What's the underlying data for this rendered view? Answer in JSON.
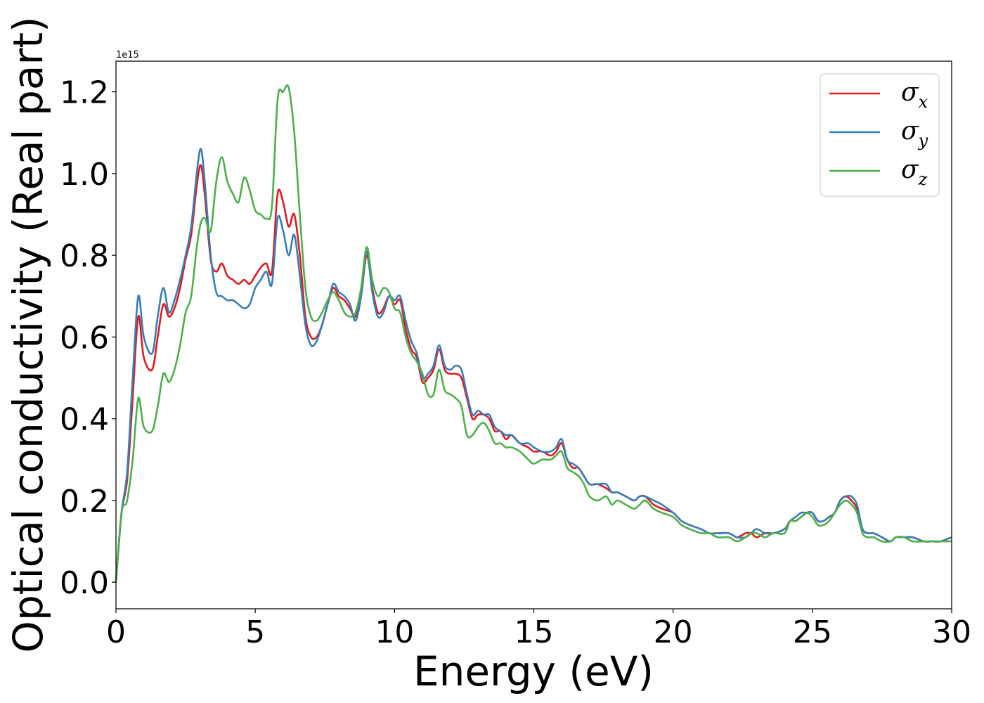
{
  "chart_data": {
    "type": "line",
    "title": "",
    "xlabel": "Energy (eV)",
    "ylabel": "Optical conductivity (Real part)",
    "y_offset_text": "1e15",
    "xlim": [
      0,
      30
    ],
    "ylim": [
      -0.065,
      1.275
    ],
    "xticks": [
      0,
      5,
      10,
      15,
      20,
      25,
      30
    ],
    "xtick_labels": [
      "0",
      "5",
      "10",
      "15",
      "20",
      "25",
      "30"
    ],
    "yticks": [
      0.0,
      0.2,
      0.4,
      0.6,
      0.8,
      1.0,
      1.2
    ],
    "ytick_labels": [
      "0.0",
      "0.2",
      "0.4",
      "0.6",
      "0.8",
      "1.0",
      "1.2"
    ],
    "grid": false,
    "legend_position": "top-right",
    "series": [
      {
        "name": "σx",
        "symbol": "σ",
        "sub": "x",
        "color": "#e41a1c",
        "x": [
          0,
          0.2,
          0.4,
          0.6,
          0.8,
          1.0,
          1.3,
          1.5,
          1.7,
          1.9,
          2.1,
          2.3,
          2.5,
          2.7,
          2.9,
          3.05,
          3.2,
          3.4,
          3.6,
          3.8,
          4.0,
          4.2,
          4.4,
          4.6,
          4.8,
          5.0,
          5.2,
          5.4,
          5.6,
          5.8,
          6.0,
          6.2,
          6.4,
          6.6,
          6.8,
          7.0,
          7.2,
          7.4,
          7.6,
          7.8,
          8.0,
          8.2,
          8.4,
          8.6,
          8.8,
          9.0,
          9.2,
          9.4,
          9.6,
          9.8,
          10.0,
          10.2,
          10.4,
          10.6,
          10.8,
          11.0,
          11.2,
          11.4,
          11.6,
          11.8,
          12.0,
          12.2,
          12.4,
          12.6,
          12.8,
          13.0,
          13.2,
          13.4,
          13.6,
          13.8,
          14.0,
          14.2,
          14.5,
          14.8,
          15.0,
          15.3,
          15.6,
          15.8,
          16.0,
          16.2,
          16.4,
          16.6,
          16.8,
          17.0,
          17.3,
          17.6,
          17.8,
          18.0,
          18.3,
          18.6,
          18.8,
          19.0,
          19.3,
          19.6,
          20.0,
          20.3,
          20.6,
          21.0,
          21.3,
          21.6,
          22.0,
          22.3,
          22.6,
          22.8,
          23.0,
          23.3,
          23.6,
          24.0,
          24.2,
          24.4,
          24.6,
          24.8,
          25.0,
          25.2,
          25.4,
          25.6,
          25.8,
          26.0,
          26.2,
          26.4,
          26.6,
          26.8,
          27.0,
          27.2,
          27.5,
          27.8,
          28.0,
          28.3,
          28.6,
          29.0,
          29.3,
          29.6,
          30.0
        ],
        "y": [
          0.0,
          0.17,
          0.25,
          0.45,
          0.65,
          0.55,
          0.52,
          0.6,
          0.68,
          0.65,
          0.67,
          0.72,
          0.79,
          0.85,
          0.97,
          1.02,
          0.94,
          0.79,
          0.76,
          0.78,
          0.75,
          0.74,
          0.73,
          0.74,
          0.73,
          0.75,
          0.77,
          0.78,
          0.76,
          0.95,
          0.93,
          0.87,
          0.9,
          0.8,
          0.65,
          0.6,
          0.6,
          0.63,
          0.68,
          0.72,
          0.7,
          0.69,
          0.67,
          0.65,
          0.7,
          0.8,
          0.72,
          0.66,
          0.67,
          0.7,
          0.68,
          0.69,
          0.62,
          0.57,
          0.55,
          0.49,
          0.5,
          0.52,
          0.57,
          0.52,
          0.51,
          0.51,
          0.5,
          0.45,
          0.4,
          0.41,
          0.41,
          0.4,
          0.37,
          0.37,
          0.35,
          0.36,
          0.34,
          0.33,
          0.32,
          0.32,
          0.31,
          0.32,
          0.34,
          0.3,
          0.28,
          0.28,
          0.26,
          0.24,
          0.24,
          0.23,
          0.22,
          0.22,
          0.21,
          0.2,
          0.21,
          0.21,
          0.19,
          0.18,
          0.17,
          0.15,
          0.14,
          0.13,
          0.12,
          0.12,
          0.12,
          0.11,
          0.12,
          0.12,
          0.11,
          0.12,
          0.12,
          0.13,
          0.15,
          0.15,
          0.16,
          0.17,
          0.17,
          0.15,
          0.15,
          0.16,
          0.17,
          0.2,
          0.21,
          0.2,
          0.18,
          0.13,
          0.12,
          0.12,
          0.11,
          0.1,
          0.11,
          0.11,
          0.11,
          0.1,
          0.1,
          0.1,
          0.11
        ]
      },
      {
        "name": "σy",
        "symbol": "σ",
        "sub": "y",
        "color": "#377eb8",
        "x": [
          0,
          0.2,
          0.4,
          0.6,
          0.8,
          1.0,
          1.3,
          1.5,
          1.7,
          1.9,
          2.1,
          2.3,
          2.5,
          2.7,
          2.9,
          3.05,
          3.2,
          3.4,
          3.6,
          3.8,
          4.0,
          4.2,
          4.4,
          4.6,
          4.8,
          5.0,
          5.2,
          5.4,
          5.6,
          5.8,
          6.0,
          6.2,
          6.4,
          6.6,
          6.8,
          7.0,
          7.2,
          7.4,
          7.6,
          7.8,
          8.0,
          8.2,
          8.4,
          8.6,
          8.8,
          9.0,
          9.2,
          9.4,
          9.6,
          9.8,
          10.0,
          10.2,
          10.4,
          10.6,
          10.8,
          11.0,
          11.2,
          11.4,
          11.6,
          11.8,
          12.0,
          12.2,
          12.4,
          12.6,
          12.8,
          13.0,
          13.2,
          13.4,
          13.6,
          13.8,
          14.0,
          14.2,
          14.5,
          14.8,
          15.0,
          15.3,
          15.6,
          15.8,
          16.0,
          16.2,
          16.4,
          16.6,
          16.8,
          17.0,
          17.3,
          17.6,
          17.8,
          18.0,
          18.3,
          18.6,
          18.8,
          19.0,
          19.3,
          19.6,
          20.0,
          20.3,
          20.6,
          21.0,
          21.3,
          21.6,
          22.0,
          22.3,
          22.6,
          22.8,
          23.0,
          23.3,
          23.6,
          24.0,
          24.2,
          24.4,
          24.6,
          24.8,
          25.0,
          25.2,
          25.4,
          25.6,
          25.8,
          26.0,
          26.2,
          26.4,
          26.6,
          26.8,
          27.0,
          27.2,
          27.5,
          27.8,
          28.0,
          28.3,
          28.6,
          29.0,
          29.3,
          29.6,
          30.0
        ],
        "y": [
          0.0,
          0.17,
          0.27,
          0.5,
          0.7,
          0.6,
          0.56,
          0.65,
          0.72,
          0.66,
          0.69,
          0.74,
          0.8,
          0.87,
          1.0,
          1.06,
          0.97,
          0.8,
          0.71,
          0.7,
          0.69,
          0.69,
          0.68,
          0.67,
          0.68,
          0.72,
          0.74,
          0.76,
          0.73,
          0.89,
          0.86,
          0.8,
          0.85,
          0.75,
          0.63,
          0.58,
          0.59,
          0.63,
          0.68,
          0.73,
          0.71,
          0.7,
          0.68,
          0.64,
          0.7,
          0.81,
          0.71,
          0.65,
          0.66,
          0.7,
          0.69,
          0.7,
          0.64,
          0.59,
          0.56,
          0.5,
          0.51,
          0.53,
          0.58,
          0.53,
          0.52,
          0.53,
          0.52,
          0.46,
          0.41,
          0.42,
          0.41,
          0.41,
          0.38,
          0.37,
          0.36,
          0.36,
          0.34,
          0.34,
          0.33,
          0.32,
          0.32,
          0.33,
          0.35,
          0.3,
          0.29,
          0.28,
          0.26,
          0.24,
          0.24,
          0.24,
          0.22,
          0.22,
          0.21,
          0.2,
          0.21,
          0.21,
          0.2,
          0.19,
          0.17,
          0.15,
          0.14,
          0.13,
          0.12,
          0.12,
          0.12,
          0.11,
          0.11,
          0.12,
          0.13,
          0.12,
          0.12,
          0.13,
          0.15,
          0.16,
          0.17,
          0.17,
          0.17,
          0.15,
          0.15,
          0.16,
          0.17,
          0.2,
          0.21,
          0.21,
          0.19,
          0.13,
          0.12,
          0.12,
          0.11,
          0.1,
          0.11,
          0.11,
          0.11,
          0.1,
          0.1,
          0.1,
          0.11
        ]
      },
      {
        "name": "σz",
        "symbol": "σ",
        "sub": "z",
        "color": "#4daf4a",
        "x": [
          0,
          0.2,
          0.4,
          0.6,
          0.8,
          1.0,
          1.3,
          1.5,
          1.7,
          1.9,
          2.1,
          2.3,
          2.5,
          2.7,
          2.9,
          3.05,
          3.2,
          3.4,
          3.6,
          3.8,
          4.0,
          4.2,
          4.4,
          4.6,
          4.8,
          5.0,
          5.2,
          5.4,
          5.6,
          5.8,
          6.0,
          6.2,
          6.4,
          6.6,
          6.8,
          7.0,
          7.2,
          7.4,
          7.6,
          7.8,
          8.0,
          8.2,
          8.4,
          8.6,
          8.8,
          9.0,
          9.2,
          9.4,
          9.6,
          9.8,
          10.0,
          10.2,
          10.4,
          10.6,
          10.8,
          11.0,
          11.2,
          11.4,
          11.6,
          11.8,
          12.0,
          12.2,
          12.4,
          12.6,
          12.8,
          13.0,
          13.2,
          13.4,
          13.6,
          13.8,
          14.0,
          14.2,
          14.5,
          14.8,
          15.0,
          15.3,
          15.6,
          15.8,
          16.0,
          16.2,
          16.4,
          16.6,
          16.8,
          17.0,
          17.3,
          17.6,
          17.8,
          18.0,
          18.3,
          18.6,
          18.8,
          19.0,
          19.3,
          19.6,
          20.0,
          20.3,
          20.6,
          21.0,
          21.3,
          21.6,
          22.0,
          22.3,
          22.6,
          22.8,
          23.0,
          23.3,
          23.6,
          24.0,
          24.2,
          24.4,
          24.6,
          24.8,
          25.0,
          25.2,
          25.4,
          25.6,
          25.8,
          26.0,
          26.2,
          26.4,
          26.6,
          26.8,
          27.0,
          27.2,
          27.5,
          27.8,
          28.0,
          28.3,
          28.6,
          29.0,
          29.3,
          29.6,
          30.0
        ],
        "y": [
          0.0,
          0.17,
          0.2,
          0.3,
          0.45,
          0.38,
          0.37,
          0.43,
          0.51,
          0.49,
          0.52,
          0.58,
          0.66,
          0.7,
          0.82,
          0.88,
          0.89,
          0.86,
          0.98,
          1.04,
          0.98,
          0.95,
          0.93,
          0.99,
          0.96,
          0.91,
          0.9,
          0.89,
          0.92,
          1.18,
          1.2,
          1.21,
          1.1,
          0.9,
          0.72,
          0.65,
          0.64,
          0.66,
          0.69,
          0.71,
          0.69,
          0.66,
          0.65,
          0.66,
          0.72,
          0.82,
          0.74,
          0.7,
          0.72,
          0.71,
          0.67,
          0.66,
          0.6,
          0.56,
          0.54,
          0.51,
          0.46,
          0.46,
          0.52,
          0.47,
          0.46,
          0.45,
          0.43,
          0.36,
          0.36,
          0.38,
          0.39,
          0.37,
          0.34,
          0.34,
          0.33,
          0.33,
          0.32,
          0.3,
          0.29,
          0.3,
          0.3,
          0.31,
          0.32,
          0.28,
          0.27,
          0.26,
          0.24,
          0.21,
          0.2,
          0.21,
          0.19,
          0.2,
          0.19,
          0.18,
          0.19,
          0.2,
          0.18,
          0.17,
          0.16,
          0.14,
          0.13,
          0.12,
          0.12,
          0.11,
          0.11,
          0.1,
          0.11,
          0.12,
          0.12,
          0.11,
          0.12,
          0.12,
          0.15,
          0.15,
          0.16,
          0.17,
          0.16,
          0.14,
          0.14,
          0.15,
          0.17,
          0.19,
          0.2,
          0.19,
          0.17,
          0.12,
          0.11,
          0.11,
          0.1,
          0.1,
          0.11,
          0.11,
          0.1,
          0.1,
          0.1,
          0.1,
          0.1
        ]
      }
    ]
  }
}
